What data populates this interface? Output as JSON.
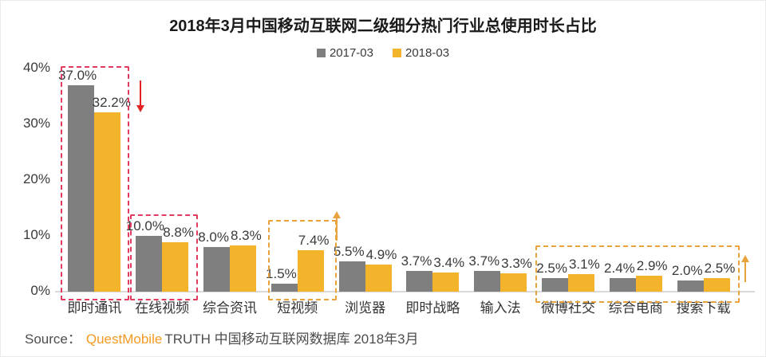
{
  "title": "2018年3月中国移动互联网二级细分热门行业总使用时长占比",
  "legend": [
    {
      "label": "2017-03",
      "color": "#7F7F7F"
    },
    {
      "label": "2018-03",
      "color": "#F3B32B"
    }
  ],
  "chart_data": {
    "type": "bar",
    "title": "2018年3月中国移动互联网二级细分热门行业总使用时长占比",
    "categories": [
      "即时通讯",
      "在线视频",
      "综合资讯",
      "短视频",
      "浏览器",
      "即时战略",
      "输入法",
      "微博社交",
      "综合电商",
      "搜索下载"
    ],
    "series": [
      {
        "name": "2017-03",
        "color": "#7F7F7F",
        "values": [
          37.0,
          10.0,
          8.0,
          1.5,
          5.5,
          3.7,
          3.7,
          2.5,
          2.4,
          2.0
        ],
        "labels": [
          "37.0%",
          "10.0%",
          "8.0%",
          "1.5%",
          "5.5%",
          "3.7%",
          "3.7%",
          "2.5%",
          "2.4%",
          "2.0%"
        ]
      },
      {
        "name": "2018-03",
        "color": "#F3B32B",
        "values": [
          32.2,
          8.8,
          8.3,
          7.4,
          4.9,
          3.4,
          3.3,
          3.1,
          2.9,
          2.5
        ],
        "labels": [
          "32.2%",
          "8.8%",
          "8.3%",
          "7.4%",
          "4.9%",
          "3.4%",
          "3.3%",
          "3.1%",
          "2.9%",
          "2.5%"
        ]
      }
    ],
    "xlabel": "",
    "ylabel": "",
    "ylim": [
      0,
      40
    ],
    "yticks": [
      {
        "value": 0,
        "label": "0%"
      },
      {
        "value": 10,
        "label": "10%"
      },
      {
        "value": 20,
        "label": "20%"
      },
      {
        "value": 30,
        "label": "30%"
      },
      {
        "value": 40,
        "label": "40%"
      }
    ],
    "grid": false,
    "legend_position": "top",
    "annotations": {
      "highlights": [
        {
          "categories": [
            "即时通讯"
          ],
          "box_color": "#E23B5F",
          "style": "dashed",
          "trend_arrow": "down",
          "arrow_color": "#E02424"
        },
        {
          "categories": [
            "在线视频"
          ],
          "box_color": "#E23B5F",
          "style": "dashed",
          "trend_arrow": "",
          "arrow_color": ""
        },
        {
          "categories": [
            "短视频"
          ],
          "box_color": "#E8A33D",
          "style": "dashed",
          "trend_arrow": "up",
          "arrow_color": "#E8A33D"
        },
        {
          "categories": [
            "微博社交",
            "综合电商",
            "搜索下载"
          ],
          "box_color": "#E8A33D",
          "style": "dashed",
          "trend_arrow": "up",
          "arrow_color": "#E8A33D"
        }
      ]
    }
  },
  "source": {
    "prefix": "Source：",
    "brand": "QuestMobile",
    "rest": "TRUTH 中国移动互联网数据库 2018年3月"
  }
}
